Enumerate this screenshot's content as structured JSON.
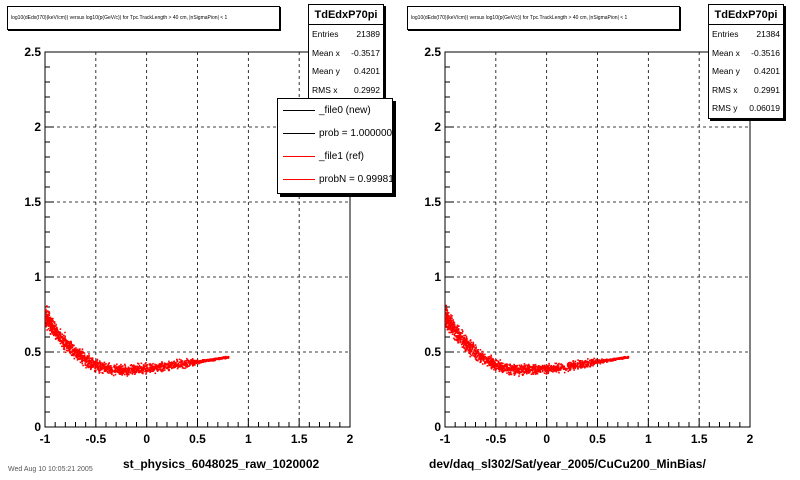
{
  "pads": [
    {
      "title": "log10(dEdx(I70)(keV/cm)) versus log10(p(GeV/c)) for Tpc.TrackLength > 40 cm, |nSigmaPion| < 1",
      "stats": {
        "name": "TdEdxP70pi",
        "rows": [
          {
            "label": "Entries",
            "value": "21389"
          },
          {
            "label": "Mean x",
            "value": "-0.3517"
          },
          {
            "label": "Mean y",
            "value": "0.4201"
          },
          {
            "label": "RMS x",
            "value": "0.2992"
          }
        ]
      },
      "legend": [
        {
          "label": "_file0 (new)",
          "color": "#000000"
        },
        {
          "label": "prob = 1.000000",
          "color": "#000000"
        },
        {
          "label": "_file1 (ref)",
          "color": "#ff0000"
        },
        {
          "label": "probN = 0.99981",
          "color": "#ff0000"
        }
      ],
      "xlabel": "st_physics_6048025_raw_1020002"
    },
    {
      "title": "log10(dEdx(I70)(keV/cm)) versus log10(p(GeV/c)) for Tpc.TrackLength > 40 cm, |nSigmaPion| < 1",
      "stats": {
        "name": "TdEdxP70pi",
        "rows": [
          {
            "label": "Entries",
            "value": "21384"
          },
          {
            "label": "Mean x",
            "value": "-0.3516"
          },
          {
            "label": "Mean y",
            "value": "0.4201"
          },
          {
            "label": "RMS x",
            "value": "0.2991"
          },
          {
            "label": "RMS y",
            "value": "0.06019"
          }
        ]
      },
      "xlabel": "dev/daq_sl302/Sat/year_2005/CuCu200_MinBias/"
    }
  ],
  "footer": "Wed Aug 10 10:05:21 2005",
  "chart_data": [
    {
      "type": "scatter",
      "title": "log10(dEdx(I70)(keV/cm)) versus log10(p(GeV/c)) for Tpc.TrackLength > 40 cm, |nSigmaPion| < 1",
      "xlabel": "st_physics_6048025_raw_1020002",
      "ylabel": "",
      "xlim": [
        -1,
        2
      ],
      "ylim": [
        0,
        2.5
      ],
      "xticks": [
        "-1",
        "-0.5",
        "0",
        "0.5",
        "1",
        "1.5",
        "2"
      ],
      "yticks": [
        "0",
        "0.5",
        "1",
        "1.5",
        "2",
        "2.5"
      ],
      "grid": true,
      "marker_color": "#ff0000",
      "band": {
        "x": [
          -1.0,
          -0.9,
          -0.8,
          -0.7,
          -0.6,
          -0.5,
          -0.4,
          -0.3,
          -0.2,
          -0.1,
          0.0,
          0.1,
          0.2,
          0.3,
          0.4,
          0.5,
          0.6,
          0.7,
          0.8
        ],
        "y": [
          0.74,
          0.64,
          0.56,
          0.5,
          0.45,
          0.415,
          0.395,
          0.385,
          0.385,
          0.39,
          0.395,
          0.4,
          0.41,
          0.42,
          0.43,
          0.44,
          0.45,
          0.46,
          0.47
        ],
        "width": [
          0.09,
          0.08,
          0.075,
          0.07,
          0.06,
          0.055,
          0.05,
          0.05,
          0.05,
          0.045,
          0.045,
          0.045,
          0.045,
          0.045,
          0.04,
          0.02,
          0.01,
          0.01,
          0.01
        ]
      }
    },
    {
      "type": "scatter",
      "title": "log10(dEdx(I70)(keV/cm)) versus log10(p(GeV/c)) for Tpc.TrackLength > 40 cm, |nSigmaPion| < 1",
      "xlabel": "dev/daq_sl302/Sat/year_2005/CuCu200_MinBias/",
      "ylabel": "",
      "xlim": [
        -1,
        2
      ],
      "ylim": [
        0,
        2.5
      ],
      "xticks": [
        "-1",
        "-0.5",
        "0",
        "0.5",
        "1",
        "1.5",
        "2"
      ],
      "yticks": [
        "0",
        "0.5",
        "1",
        "1.5",
        "2",
        "2.5"
      ],
      "grid": true,
      "marker_color": "#ff0000",
      "band": {
        "x": [
          -1.0,
          -0.9,
          -0.8,
          -0.7,
          -0.6,
          -0.5,
          -0.4,
          -0.3,
          -0.2,
          -0.1,
          0.0,
          0.1,
          0.2,
          0.3,
          0.4,
          0.5,
          0.6,
          0.7,
          0.8
        ],
        "y": [
          0.74,
          0.64,
          0.56,
          0.5,
          0.45,
          0.415,
          0.395,
          0.385,
          0.385,
          0.39,
          0.395,
          0.4,
          0.41,
          0.42,
          0.43,
          0.44,
          0.45,
          0.46,
          0.47
        ],
        "width": [
          0.09,
          0.08,
          0.075,
          0.07,
          0.06,
          0.055,
          0.05,
          0.05,
          0.05,
          0.045,
          0.045,
          0.045,
          0.045,
          0.045,
          0.04,
          0.02,
          0.01,
          0.01,
          0.01
        ]
      }
    }
  ]
}
